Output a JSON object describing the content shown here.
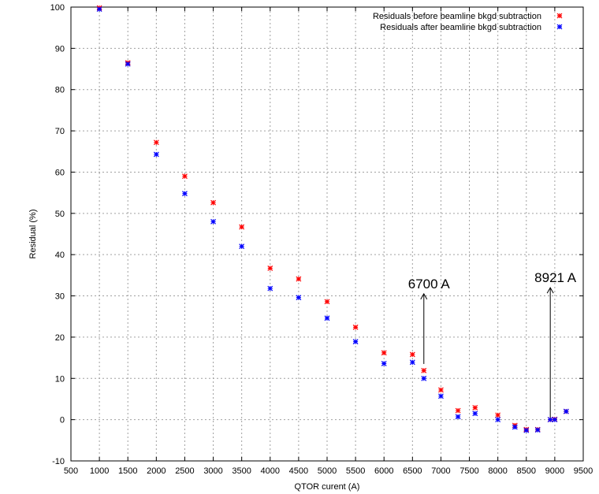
{
  "chart_data": {
    "type": "scatter",
    "xlabel": "QTOR curent (A)",
    "ylabel": "Residual (%)",
    "xlim": [
      500,
      9500
    ],
    "ylim": [
      -10,
      100
    ],
    "xticks": [
      500,
      1000,
      1500,
      2000,
      2500,
      3000,
      3500,
      4000,
      4500,
      5000,
      5500,
      6000,
      6500,
      7000,
      7500,
      8000,
      8500,
      9000,
      9500
    ],
    "yticks": [
      -10,
      0,
      10,
      20,
      30,
      40,
      50,
      60,
      70,
      80,
      90,
      100
    ],
    "grid": true,
    "legend_position": "top-right",
    "series": [
      {
        "name": "Residuals before beamline bkgd subtraction",
        "color": "#ff0000",
        "marker": "asterisk",
        "x": [
          1000,
          1500,
          2000,
          2500,
          3000,
          3500,
          4000,
          4500,
          5000,
          5500,
          6000,
          6500,
          6700,
          7000,
          7300,
          7600,
          8000,
          8300,
          8500,
          8700,
          8921,
          9000,
          9200
        ],
        "y": [
          99.8,
          86.5,
          67.2,
          59.0,
          52.6,
          46.7,
          36.7,
          34.1,
          28.6,
          22.4,
          16.2,
          15.8,
          11.9,
          7.2,
          2.2,
          2.9,
          1.1,
          -1.4,
          -2.4,
          -2.4,
          0.0,
          0.1,
          2.0
        ]
      },
      {
        "name": "Residuals after beamline bkgd subtraction",
        "color": "#0000ff",
        "marker": "asterisk",
        "x": [
          1000,
          1500,
          2000,
          2500,
          3000,
          3500,
          4000,
          4500,
          5000,
          5500,
          6000,
          6500,
          6700,
          7000,
          7300,
          7600,
          8000,
          8300,
          8500,
          8700,
          8921,
          9000,
          9200
        ],
        "y": [
          99.5,
          86.2,
          64.3,
          54.8,
          48.0,
          42.0,
          31.8,
          29.6,
          24.6,
          18.9,
          13.6,
          13.9,
          10.0,
          5.7,
          0.7,
          1.5,
          0.0,
          -1.8,
          -2.6,
          -2.5,
          0.0,
          0.0,
          2.0
        ]
      }
    ],
    "annotations": [
      {
        "text": "6700 A",
        "x": 6700,
        "y_from": 13.5,
        "y_to": 30.5
      },
      {
        "text": "8921 A",
        "x": 8921,
        "y_from": 0.5,
        "y_to": 32.0
      }
    ]
  }
}
